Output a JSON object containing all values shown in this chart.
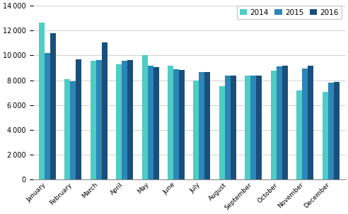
{
  "months": [
    "January",
    "February",
    "March",
    "April",
    "May",
    "June",
    "July",
    "August",
    "September",
    "October",
    "November",
    "December"
  ],
  "series": {
    "2014": [
      12650,
      8100,
      9550,
      9300,
      10050,
      9150,
      8000,
      7500,
      8400,
      8750,
      7200,
      7050
    ],
    "2015": [
      10200,
      7900,
      9600,
      9550,
      9150,
      8900,
      8650,
      8350,
      8400,
      9100,
      8950,
      7800
    ],
    "2016": [
      11800,
      9700,
      11050,
      9600,
      9050,
      8850,
      8650,
      8400,
      8400,
      9150,
      9150,
      7850
    ]
  },
  "colors": {
    "2014": "#4ecdc4",
    "2015": "#2b87b8",
    "2016": "#1a4f7a"
  },
  "ylim": [
    0,
    14000
  ],
  "yticks": [
    0,
    2000,
    4000,
    6000,
    8000,
    10000,
    12000,
    14000
  ],
  "grid_color": "#d0d0d0",
  "background_color": "#ffffff",
  "bar_width": 0.22
}
